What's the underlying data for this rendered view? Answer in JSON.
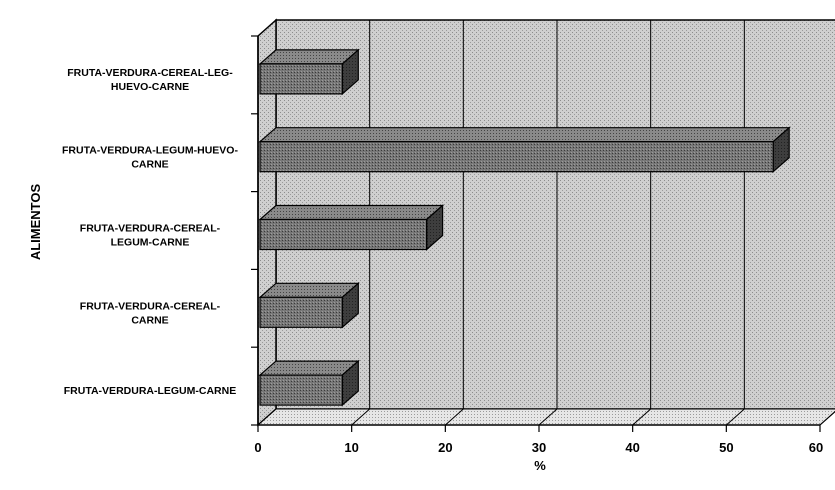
{
  "chart_data": {
    "type": "bar",
    "orientation": "horizontal",
    "three_d": true,
    "title": "",
    "xlabel": "%",
    "ylabel": "ALIMENTOS",
    "xlim": [
      0,
      60
    ],
    "x_ticks": [
      "0",
      "10",
      "20",
      "30",
      "40",
      "50",
      "60"
    ],
    "grid": true,
    "legend": "none",
    "bar_color": "#6a6a6a",
    "wall_color": "#c9c9c9",
    "categories": [
      "FRUTA-VERDURA-CEREAL-LEG-HUEVO-CARNE",
      "FRUTA-VERDURA-LEGUM-HUEVO-CARNE",
      "FRUTA-VERDURA-CEREAL-LEGUM-CARNE",
      "FRUTA-VERDURA-CEREAL-CARNE",
      "FRUTA-VERDURA-LEGUM-CARNE"
    ],
    "category_label_lines": [
      [
        "FRUTA-VERDURA-CEREAL-LEG-",
        "HUEVO-CARNE"
      ],
      [
        "FRUTA-VERDURA-LEGUM-HUEVO-",
        "CARNE"
      ],
      [
        "FRUTA-VERDURA-CEREAL-",
        "LEGUM-CARNE"
      ],
      [
        "FRUTA-VERDURA-CEREAL-",
        "CARNE"
      ],
      [
        "FRUTA-VERDURA-LEGUM-CARNE"
      ]
    ],
    "values": [
      9,
      55,
      18,
      9,
      9
    ]
  }
}
